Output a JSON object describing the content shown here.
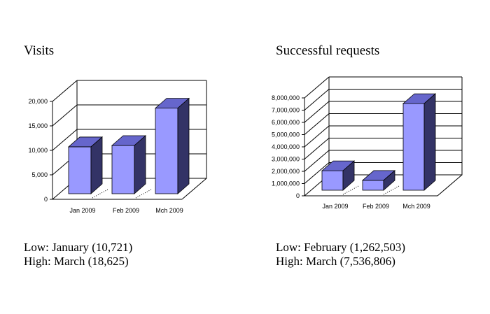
{
  "colors": {
    "bar_front": "#9999ff",
    "bar_top": "#6666cc",
    "bar_side": "#333366",
    "grid": "#000000"
  },
  "chart_data": [
    {
      "type": "bar",
      "title": "Visits",
      "categories": [
        "Jan 2009",
        "Feb 2009",
        "Mch 2009"
      ],
      "values": [
        10721,
        11000,
        18625
      ],
      "ylim": [
        0,
        20000
      ],
      "yticks": [
        "0",
        "5,000",
        "10,000",
        "15,000",
        "20,000"
      ],
      "grid": true,
      "style": "3d",
      "summary": {
        "low": "Low: January (10,721)",
        "high": "High: March (18,625)"
      }
    },
    {
      "type": "bar",
      "title": "Successful requests",
      "categories": [
        "Jan 2009",
        "Feb 2009",
        "Mch 2009"
      ],
      "values": [
        2050000,
        1262503,
        7536806
      ],
      "ylim": [
        0,
        8000000
      ],
      "yticks": [
        "0",
        "1,000,000",
        "2,000,000",
        "3,000,000",
        "4,000,000",
        "5,000,000",
        "6,000,000",
        "7,000,000",
        "8,000,000"
      ],
      "grid": true,
      "style": "3d",
      "summary": {
        "low": "Low: February (1,262,503)",
        "high": "High: March (7,536,806)"
      }
    }
  ]
}
